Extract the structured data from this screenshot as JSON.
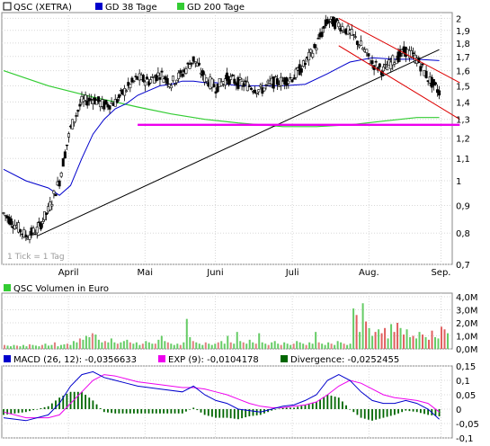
{
  "chart_data": [
    {
      "type": "candlestick",
      "legend": [
        {
          "name": "QSC (XETRA)",
          "color": "#000000"
        },
        {
          "name": "GD 38 Tage",
          "color": "#0000cc"
        },
        {
          "name": "GD 200 Tage",
          "color": "#33cc33"
        }
      ],
      "x_ticks": [
        "April",
        "Mai",
        "Juni",
        "Juli",
        "Aug.",
        "Sep."
      ],
      "y_ticks": [
        "2",
        "1,9",
        "1,8",
        "1,7",
        "1,6",
        "1,5",
        "1,4",
        "1,3",
        "1,2",
        "1,1",
        "1",
        "0,9",
        "0,8",
        "0,7"
      ],
      "y_scale": "log",
      "ylim": [
        0.7,
        2.05
      ],
      "note": "1 Tick = 1 Tag",
      "grid": true,
      "close_path": [
        [
          0,
          0.87
        ],
        [
          6,
          0.83
        ],
        [
          12,
          0.79
        ],
        [
          18,
          0.81
        ],
        [
          24,
          0.88
        ],
        [
          30,
          1.0
        ],
        [
          36,
          1.25
        ],
        [
          42,
          1.4
        ],
        [
          48,
          1.42
        ],
        [
          54,
          1.38
        ],
        [
          60,
          1.4
        ],
        [
          66,
          1.48
        ],
        [
          72,
          1.55
        ],
        [
          78,
          1.53
        ],
        [
          84,
          1.58
        ],
        [
          90,
          1.52
        ],
        [
          96,
          1.58
        ],
        [
          102,
          1.68
        ],
        [
          108,
          1.55
        ],
        [
          114,
          1.49
        ],
        [
          120,
          1.55
        ],
        [
          126,
          1.52
        ],
        [
          132,
          1.5
        ],
        [
          138,
          1.47
        ],
        [
          144,
          1.52
        ],
        [
          150,
          1.53
        ],
        [
          156,
          1.56
        ],
        [
          162,
          1.65
        ],
        [
          168,
          1.78
        ],
        [
          174,
          1.98
        ],
        [
          180,
          1.95
        ],
        [
          186,
          1.88
        ],
        [
          192,
          1.78
        ],
        [
          198,
          1.65
        ],
        [
          204,
          1.6
        ],
        [
          210,
          1.68
        ],
        [
          216,
          1.74
        ],
        [
          222,
          1.68
        ],
        [
          228,
          1.55
        ],
        [
          234,
          1.46
        ]
      ],
      "ma38": [
        [
          0,
          1.05
        ],
        [
          12,
          1.0
        ],
        [
          24,
          0.97
        ],
        [
          30,
          0.94
        ],
        [
          36,
          0.98
        ],
        [
          42,
          1.1
        ],
        [
          48,
          1.22
        ],
        [
          54,
          1.3
        ],
        [
          60,
          1.36
        ],
        [
          66,
          1.39
        ],
        [
          72,
          1.44
        ],
        [
          78,
          1.47
        ],
        [
          84,
          1.5
        ],
        [
          90,
          1.51
        ],
        [
          96,
          1.53
        ],
        [
          102,
          1.53
        ],
        [
          108,
          1.52
        ],
        [
          114,
          1.52
        ],
        [
          120,
          1.51
        ],
        [
          126,
          1.5
        ],
        [
          138,
          1.5
        ],
        [
          150,
          1.5
        ],
        [
          162,
          1.51
        ],
        [
          174,
          1.58
        ],
        [
          186,
          1.66
        ],
        [
          198,
          1.69
        ],
        [
          210,
          1.68
        ],
        [
          222,
          1.68
        ],
        [
          234,
          1.67
        ]
      ],
      "ma200": [
        [
          0,
          1.6
        ],
        [
          24,
          1.5
        ],
        [
          48,
          1.43
        ],
        [
          72,
          1.37
        ],
        [
          90,
          1.33
        ],
        [
          108,
          1.3
        ],
        [
          126,
          1.28
        ],
        [
          150,
          1.26
        ],
        [
          168,
          1.26
        ],
        [
          186,
          1.27
        ],
        [
          204,
          1.29
        ],
        [
          222,
          1.31
        ],
        [
          234,
          1.31
        ]
      ],
      "trendlines": [
        {
          "from": [
            18,
            0.79
          ],
          "to": [
            234,
            1.75
          ],
          "color": "#000000"
        },
        {
          "from": [
            180,
            2.0
          ],
          "to": [
            245,
            1.52
          ],
          "color": "#dd0000"
        },
        {
          "from": [
            180,
            1.78
          ],
          "to": [
            245,
            1.3
          ],
          "color": "#dd0000"
        },
        {
          "from": [
            72,
            1.27
          ],
          "to": [
            245,
            1.27
          ],
          "color": "#ee00ee"
        }
      ]
    },
    {
      "type": "bar",
      "legend": [
        {
          "name": "QSC Volumen in Euro",
          "color": "#33cc33"
        }
      ],
      "y_ticks": [
        "4,0M",
        "3,0M",
        "2,0M",
        "1,0M",
        "0,0M"
      ],
      "ylim": [
        0,
        4.0
      ],
      "values_m": [
        0.3,
        0.25,
        0.2,
        0.3,
        0.25,
        0.2,
        0.3,
        0.2,
        0.35,
        0.3,
        0.25,
        0.2,
        0.3,
        0.4,
        0.25,
        0.3,
        0.5,
        0.2,
        0.3,
        0.35,
        0.4,
        0.3,
        0.6,
        0.5,
        0.8,
        0.7,
        1.0,
        0.9,
        1.2,
        1.1,
        0.7,
        0.5,
        0.6,
        0.5,
        0.8,
        0.5,
        0.4,
        0.5,
        0.6,
        0.7,
        0.5,
        0.4,
        0.5,
        0.3,
        0.4,
        0.6,
        0.5,
        0.4,
        0.4,
        0.7,
        1.0,
        0.6,
        0.5,
        0.4,
        0.3,
        0.4,
        0.3,
        0.5,
        2.3,
        0.9,
        0.6,
        0.5,
        0.4,
        0.3,
        0.5,
        0.4,
        0.3,
        0.4,
        0.5,
        0.6,
        0.4,
        1.0,
        0.5,
        0.4,
        1.3,
        0.6,
        0.5,
        0.4,
        0.7,
        0.5,
        0.4,
        1.2,
        0.5,
        0.4,
        0.3,
        0.5,
        0.6,
        0.4,
        0.3,
        0.5,
        0.4,
        0.3,
        0.4,
        0.6,
        0.5,
        0.4,
        0.3,
        0.5,
        0.4,
        1.3,
        0.5,
        0.4,
        0.3,
        0.5,
        0.4,
        0.3,
        0.6,
        0.5,
        0.4,
        0.3,
        0.4,
        3.1,
        2.6,
        1.3,
        3.5,
        2.1,
        1.6,
        1.0,
        1.3,
        1.5,
        1.2,
        1.6,
        0.8,
        1.9,
        1.3,
        2.0,
        1.6,
        1.1,
        1.5,
        0.9,
        1.0,
        0.8,
        1.3,
        1.1,
        0.9,
        0.7,
        1.4,
        0.9,
        0.8,
        1.7,
        1.5,
        1.2
      ],
      "colors": "green-until-august-then-mixed"
    },
    {
      "type": "line",
      "legend": [
        {
          "name": "MACD (26, 12): -0,0356633",
          "color": "#0000cc"
        },
        {
          "name": "EXP (9): -0,0104178",
          "color": "#ee00ee"
        },
        {
          "name": "Divergence: -0,0252455",
          "color": "#006600"
        }
      ],
      "y_ticks": [
        "0,15",
        "0,1",
        "0,05",
        "0",
        "-0,05",
        "-0,1"
      ],
      "ylim": [
        -0.1,
        0.15
      ],
      "macd": [
        [
          0,
          -0.03
        ],
        [
          12,
          -0.04
        ],
        [
          24,
          -0.02
        ],
        [
          30,
          0.02
        ],
        [
          36,
          0.08
        ],
        [
          42,
          0.12
        ],
        [
          48,
          0.13
        ],
        [
          54,
          0.11
        ],
        [
          60,
          0.1
        ],
        [
          66,
          0.09
        ],
        [
          72,
          0.08
        ],
        [
          84,
          0.07
        ],
        [
          96,
          0.06
        ],
        [
          102,
          0.08
        ],
        [
          108,
          0.05
        ],
        [
          114,
          0.03
        ],
        [
          120,
          0.02
        ],
        [
          126,
          0.0
        ],
        [
          132,
          -0.005
        ],
        [
          138,
          -0.01
        ],
        [
          144,
          0.0
        ],
        [
          150,
          0.01
        ],
        [
          156,
          0.015
        ],
        [
          162,
          0.03
        ],
        [
          168,
          0.05
        ],
        [
          174,
          0.1
        ],
        [
          180,
          0.12
        ],
        [
          186,
          0.1
        ],
        [
          192,
          0.06
        ],
        [
          198,
          0.03
        ],
        [
          204,
          0.02
        ],
        [
          210,
          0.02
        ],
        [
          216,
          0.03
        ],
        [
          222,
          0.02
        ],
        [
          228,
          0.0
        ],
        [
          234,
          -0.035
        ]
      ],
      "signal": [
        [
          0,
          -0.01
        ],
        [
          12,
          -0.03
        ],
        [
          24,
          -0.03
        ],
        [
          30,
          -0.02
        ],
        [
          36,
          0.02
        ],
        [
          42,
          0.06
        ],
        [
          48,
          0.1
        ],
        [
          54,
          0.12
        ],
        [
          60,
          0.115
        ],
        [
          66,
          0.105
        ],
        [
          72,
          0.095
        ],
        [
          84,
          0.085
        ],
        [
          96,
          0.075
        ],
        [
          102,
          0.075
        ],
        [
          108,
          0.07
        ],
        [
          114,
          0.06
        ],
        [
          120,
          0.05
        ],
        [
          126,
          0.035
        ],
        [
          132,
          0.02
        ],
        [
          138,
          0.01
        ],
        [
          144,
          0.005
        ],
        [
          150,
          0.005
        ],
        [
          156,
          0.01
        ],
        [
          162,
          0.015
        ],
        [
          168,
          0.025
        ],
        [
          174,
          0.05
        ],
        [
          180,
          0.08
        ],
        [
          186,
          0.1
        ],
        [
          192,
          0.09
        ],
        [
          198,
          0.07
        ],
        [
          204,
          0.05
        ],
        [
          210,
          0.04
        ],
        [
          216,
          0.035
        ],
        [
          222,
          0.03
        ],
        [
          228,
          0.02
        ],
        [
          234,
          -0.01
        ]
      ]
    }
  ]
}
